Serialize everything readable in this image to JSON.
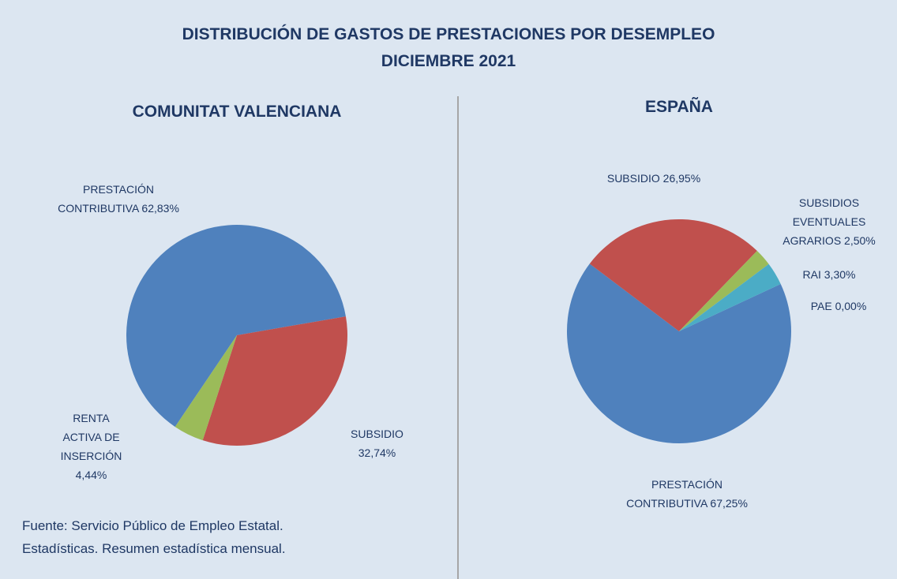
{
  "title": "DISTRIBUCIÓN DE GASTOS DE PRESTACIONES POR DESEMPLEO",
  "subtitle": "DICIEMBRE 2021",
  "source": [
    "Fuente: Servicio Público de Empleo Estatal.",
    "Estadísticas. Resumen estadística mensual."
  ],
  "chart_data": [
    {
      "type": "pie",
      "title": "COMUNITAT VALENCIANA",
      "categories": [
        "PRESTACIÓN CONTRIBUTIVA",
        "SUBSIDIO",
        "RENTA ACTIVA DE INSERCIÓN"
      ],
      "values": [
        62.83,
        32.74,
        4.44
      ],
      "value_labels": [
        "62,83%",
        "32,74%",
        "4,44%"
      ],
      "colors": [
        "#4f81bd",
        "#c0504d",
        "#9bbb59"
      ]
    },
    {
      "type": "pie",
      "title": "ESPAÑA",
      "categories": [
        "PRESTACIÓN CONTRIBUTIVA",
        "SUBSIDIO",
        "SUBSIDIOS EVENTUALES AGRARIOS",
        "RAI",
        "PAE"
      ],
      "values": [
        67.25,
        26.95,
        2.5,
        3.3,
        0
      ],
      "value_labels": [
        "67,25%",
        "26,95%",
        "2,50%",
        "3,30%",
        "0,00%"
      ],
      "colors": [
        "#4f81bd",
        "#c0504d",
        "#9bbb59",
        "#4bacc6",
        "#8064a2"
      ]
    }
  ]
}
